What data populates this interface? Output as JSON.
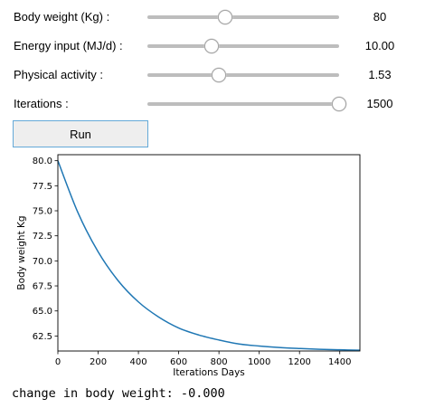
{
  "controls": {
    "sliders": [
      {
        "label": "Body weight (Kg) :",
        "value_text": "80",
        "fraction": 0.406
      },
      {
        "label": "Energy input (MJ/d) :",
        "value_text": "10.00",
        "fraction": 0.337
      },
      {
        "label": "Physical activity :",
        "value_text": "1.53",
        "fraction": 0.373
      },
      {
        "label": "Iterations :",
        "value_text": "1500",
        "fraction": 1.0
      }
    ],
    "run_label": "Run"
  },
  "chart_data": {
    "type": "line",
    "title": "",
    "xlabel": "Iterations Days",
    "ylabel": "Body weight Kg",
    "xlim": [
      0,
      1500
    ],
    "ylim": [
      61.0,
      80.6
    ],
    "xticks": [
      0,
      200,
      400,
      600,
      800,
      1000,
      1200,
      1400
    ],
    "yticks": [
      62.5,
      65.0,
      67.5,
      70.0,
      72.5,
      75.0,
      77.5,
      80.0
    ],
    "ytick_labels": [
      "62.5",
      "65.0",
      "67.5",
      "70.0",
      "72.5",
      "75.0",
      "77.5",
      "80.0"
    ],
    "grid": false,
    "line_color": "#1f77b4",
    "series": [
      {
        "x": [
          0,
          100,
          200,
          300,
          400,
          500,
          600,
          700,
          800,
          900,
          1000,
          1100,
          1200,
          1300,
          1400,
          1500
        ],
        "y": [
          80.0,
          74.8,
          70.9,
          68.0,
          65.9,
          64.4,
          63.3,
          62.6,
          62.1,
          61.7,
          61.5,
          61.35,
          61.25,
          61.17,
          61.12,
          61.08
        ]
      }
    ]
  },
  "output": {
    "text": "change in body weight: -0.000"
  }
}
